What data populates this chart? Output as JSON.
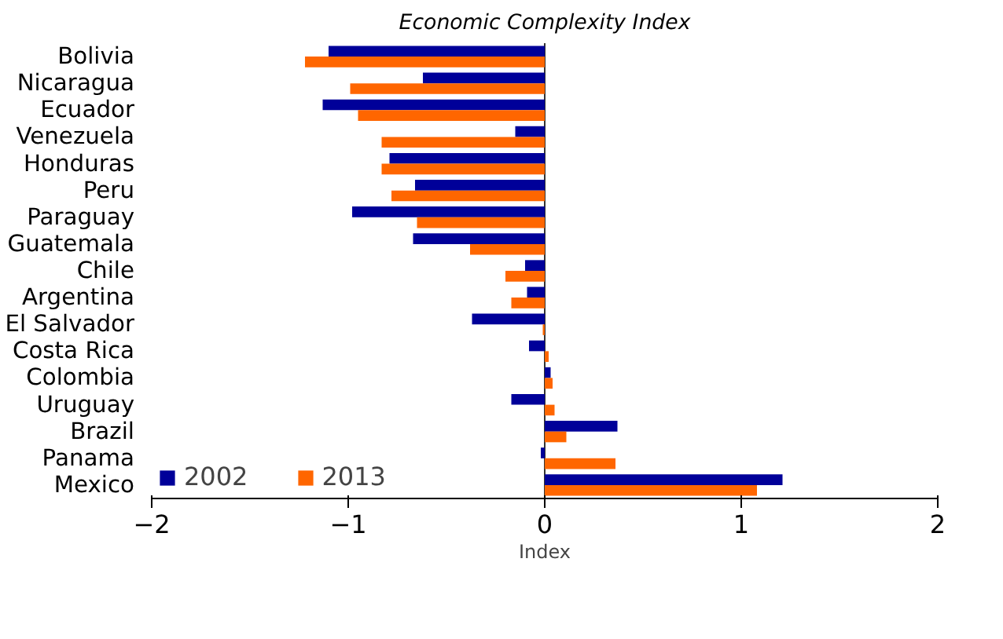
{
  "chart_data": {
    "type": "bar",
    "orientation": "horizontal",
    "subtitle": "Economic Complexity Index",
    "xlabel": "Index",
    "categories": [
      "Bolivia",
      "Nicaragua",
      "Ecuador",
      "Venezuela",
      "Honduras",
      "Peru",
      "Paraguay",
      "Guatemala",
      "Chile",
      "Argentina",
      "El Salvador",
      "Costa Rica",
      "Colombia",
      "Uruguay",
      "Brazil",
      "Panama",
      "Mexico"
    ],
    "series": [
      {
        "name": "2002",
        "color": "#000099",
        "values": [
          -1.1,
          -0.62,
          -1.13,
          -0.15,
          -0.79,
          -0.66,
          -0.98,
          -0.67,
          -0.1,
          -0.09,
          -0.37,
          -0.08,
          0.03,
          -0.17,
          0.37,
          -0.02,
          1.21
        ]
      },
      {
        "name": "2013",
        "color": "#ff6600",
        "values": [
          -1.22,
          -0.99,
          -0.95,
          -0.83,
          -0.83,
          -0.78,
          -0.65,
          -0.38,
          -0.2,
          -0.17,
          -0.01,
          0.02,
          0.04,
          0.05,
          0.11,
          0.36,
          1.08
        ]
      }
    ],
    "xlim": [
      -2,
      2
    ],
    "xticks": [
      -2,
      -1,
      0,
      1,
      2
    ],
    "grid": false,
    "legend": "bottom left",
    "ref_lines": [
      {
        "axis": "x",
        "value": 0,
        "color": "#333333"
      }
    ]
  }
}
